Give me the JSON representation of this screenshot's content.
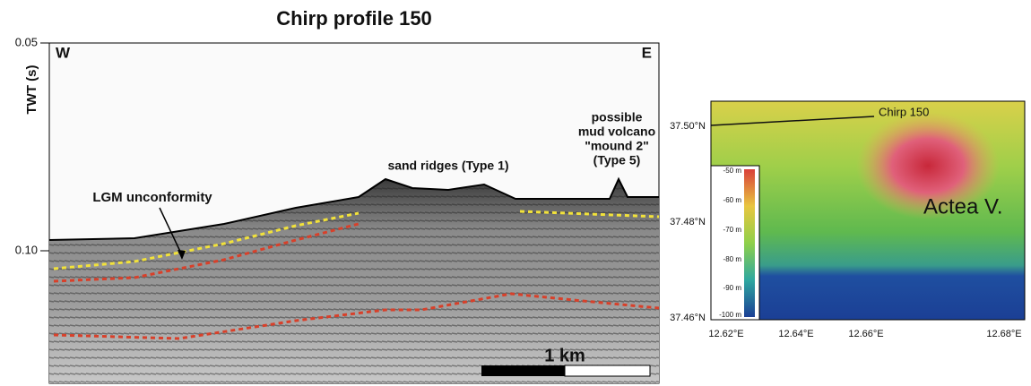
{
  "profile": {
    "title": "Chirp profile 150",
    "y_axis_label": "TWT (s)",
    "y_tick_labels": [
      "0.05",
      "0.10"
    ],
    "west": "W",
    "east": "E",
    "annotations": {
      "lgm": "LGM unconformity",
      "sand_ridges": "sand ridges (Type 1)",
      "mud_volcano": [
        "possible",
        "mud volcano",
        "\"mound 2\"",
        "(Type 5)"
      ]
    },
    "scale_bar": "1 km"
  },
  "map": {
    "track_label": "Chirp 150",
    "feature_label": "Actea V.",
    "lat_labels": [
      "37.50°N",
      "37.48°N",
      "37.46°N"
    ],
    "lon_labels": [
      "12.62°E",
      "12.64°E",
      "12.66°E",
      "12.68°E"
    ],
    "depth_legend": [
      "-50 m",
      "-60 m",
      "-70 m",
      "-80 m",
      "-90 m",
      "-100 m"
    ]
  }
}
